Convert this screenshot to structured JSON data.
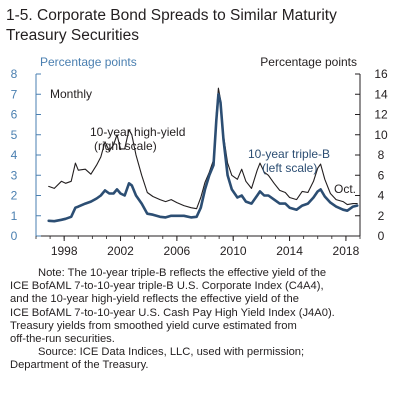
{
  "chart_data": {
    "type": "line",
    "title": "1-5. Corporate Bond Spreads to Similar Maturity Treasury Securities",
    "title_lines": [
      "1-5. Corporate Bond Spreads to Similar Maturity",
      "Treasury Securities"
    ],
    "left_axis": {
      "label": "Percentage points",
      "range": [
        0,
        8
      ],
      "ticks": [
        0,
        1,
        2,
        3,
        4,
        5,
        6,
        7,
        8
      ],
      "color": "#4a7fb0"
    },
    "right_axis": {
      "label": "Percentage points",
      "range": [
        0,
        16
      ],
      "ticks": [
        0,
        2,
        4,
        6,
        8,
        10,
        12,
        14,
        16
      ]
    },
    "x_axis": {
      "range": [
        1996,
        2019
      ],
      "ticks": [
        1998,
        2002,
        2006,
        2010,
        2014,
        2018
      ]
    },
    "frequency_label": "Monthly",
    "series": [
      {
        "name": "10-year high-yield",
        "label_lines": [
          "10-year high-yield",
          "(right scale)"
        ],
        "axis": "right",
        "color": "#231f20",
        "points": [
          [
            1996.9,
            4.9
          ],
          [
            1997.3,
            4.7
          ],
          [
            1997.8,
            5.4
          ],
          [
            1998.1,
            5.2
          ],
          [
            1998.5,
            5.4
          ],
          [
            1998.8,
            7.2
          ],
          [
            1999.0,
            6.5
          ],
          [
            1999.5,
            6.6
          ],
          [
            1999.9,
            6.1
          ],
          [
            2000.3,
            7.0
          ],
          [
            2000.6,
            7.8
          ],
          [
            2000.9,
            9.3
          ],
          [
            2001.2,
            8.4
          ],
          [
            2001.5,
            9.0
          ],
          [
            2001.75,
            10.0
          ],
          [
            2002.0,
            8.6
          ],
          [
            2002.3,
            8.6
          ],
          [
            2002.6,
            10.5
          ],
          [
            2002.8,
            10.0
          ],
          [
            2003.1,
            8.0
          ],
          [
            2003.5,
            6.0
          ],
          [
            2003.9,
            4.3
          ],
          [
            2004.3,
            3.9
          ],
          [
            2004.8,
            3.6
          ],
          [
            2005.2,
            3.4
          ],
          [
            2005.6,
            3.6
          ],
          [
            2006.0,
            3.3
          ],
          [
            2006.5,
            3.0
          ],
          [
            2007.0,
            2.8
          ],
          [
            2007.4,
            2.7
          ],
          [
            2007.7,
            3.8
          ],
          [
            2008.0,
            5.3
          ],
          [
            2008.3,
            6.3
          ],
          [
            2008.6,
            7.5
          ],
          [
            2008.8,
            12.0
          ],
          [
            2008.95,
            14.6
          ],
          [
            2009.1,
            13.5
          ],
          [
            2009.3,
            10.0
          ],
          [
            2009.6,
            7.2
          ],
          [
            2009.9,
            6.0
          ],
          [
            2010.3,
            5.6
          ],
          [
            2010.6,
            6.6
          ],
          [
            2010.9,
            5.4
          ],
          [
            2011.3,
            4.7
          ],
          [
            2011.7,
            6.5
          ],
          [
            2011.9,
            7.2
          ],
          [
            2012.2,
            6.3
          ],
          [
            2012.5,
            6.0
          ],
          [
            2012.9,
            5.2
          ],
          [
            2013.3,
            4.5
          ],
          [
            2013.7,
            4.3
          ],
          [
            2014.0,
            3.8
          ],
          [
            2014.5,
            3.6
          ],
          [
            2014.9,
            4.4
          ],
          [
            2015.3,
            4.3
          ],
          [
            2015.7,
            5.4
          ],
          [
            2016.0,
            6.7
          ],
          [
            2016.2,
            7.1
          ],
          [
            2016.5,
            5.6
          ],
          [
            2016.9,
            4.2
          ],
          [
            2017.3,
            3.6
          ],
          [
            2017.8,
            3.4
          ],
          [
            2018.1,
            3.1
          ],
          [
            2018.5,
            3.2
          ],
          [
            2018.8,
            3.2
          ]
        ]
      },
      {
        "name": "10-year triple-B",
        "label_lines": [
          "10-year triple-B",
          "(left scale)"
        ],
        "axis": "left",
        "color": "#2c4e73",
        "points": [
          [
            1996.9,
            0.75
          ],
          [
            1997.3,
            0.73
          ],
          [
            1997.8,
            0.8
          ],
          [
            1998.1,
            0.85
          ],
          [
            1998.5,
            0.95
          ],
          [
            1998.8,
            1.4
          ],
          [
            1999.0,
            1.45
          ],
          [
            1999.5,
            1.6
          ],
          [
            1999.9,
            1.7
          ],
          [
            2000.3,
            1.85
          ],
          [
            2000.6,
            2.0
          ],
          [
            2000.9,
            2.25
          ],
          [
            2001.2,
            2.1
          ],
          [
            2001.5,
            2.1
          ],
          [
            2001.75,
            2.3
          ],
          [
            2002.0,
            2.1
          ],
          [
            2002.3,
            2.0
          ],
          [
            2002.6,
            2.6
          ],
          [
            2002.8,
            2.5
          ],
          [
            2003.1,
            2.0
          ],
          [
            2003.5,
            1.6
          ],
          [
            2003.9,
            1.1
          ],
          [
            2004.3,
            1.05
          ],
          [
            2004.8,
            0.95
          ],
          [
            2005.2,
            0.92
          ],
          [
            2005.6,
            1.0
          ],
          [
            2006.0,
            1.0
          ],
          [
            2006.5,
            1.0
          ],
          [
            2007.0,
            0.92
          ],
          [
            2007.4,
            0.95
          ],
          [
            2007.7,
            1.4
          ],
          [
            2008.0,
            2.3
          ],
          [
            2008.3,
            3.0
          ],
          [
            2008.6,
            3.5
          ],
          [
            2008.8,
            5.7
          ],
          [
            2008.95,
            7.0
          ],
          [
            2009.1,
            6.6
          ],
          [
            2009.3,
            4.8
          ],
          [
            2009.6,
            3.0
          ],
          [
            2009.9,
            2.3
          ],
          [
            2010.3,
            1.9
          ],
          [
            2010.6,
            2.0
          ],
          [
            2010.9,
            1.7
          ],
          [
            2011.3,
            1.6
          ],
          [
            2011.7,
            2.0
          ],
          [
            2011.9,
            2.2
          ],
          [
            2012.2,
            2.0
          ],
          [
            2012.5,
            2.0
          ],
          [
            2012.9,
            1.8
          ],
          [
            2013.3,
            1.6
          ],
          [
            2013.7,
            1.6
          ],
          [
            2014.0,
            1.4
          ],
          [
            2014.5,
            1.3
          ],
          [
            2014.9,
            1.5
          ],
          [
            2015.3,
            1.6
          ],
          [
            2015.7,
            1.9
          ],
          [
            2016.0,
            2.2
          ],
          [
            2016.2,
            2.3
          ],
          [
            2016.5,
            1.95
          ],
          [
            2016.9,
            1.65
          ],
          [
            2017.3,
            1.45
          ],
          [
            2017.8,
            1.3
          ],
          [
            2018.1,
            1.25
          ],
          [
            2018.5,
            1.45
          ],
          [
            2018.8,
            1.5
          ]
        ]
      }
    ],
    "annotations": [
      {
        "text": "Oct."
      }
    ],
    "grid": false
  },
  "notes": {
    "note_lines": [
      "Note: The 10-year triple-B reflects the effective yield of the",
      "ICE BofAML 7-to-10-year triple-B U.S. Corporate Index (C4A4),",
      "and the 10-year high-yield reflects the effective yield of the",
      "ICE BofAML 7-to-10-year U.S. Cash Pay High Yield Index (J4A0).",
      "Treasury yields from smoothed yield curve estimated from",
      "off-the-run securities."
    ],
    "source_lines": [
      "Source: ICE Data Indices, LLC, used with permission;",
      "Department of the Treasury."
    ]
  }
}
